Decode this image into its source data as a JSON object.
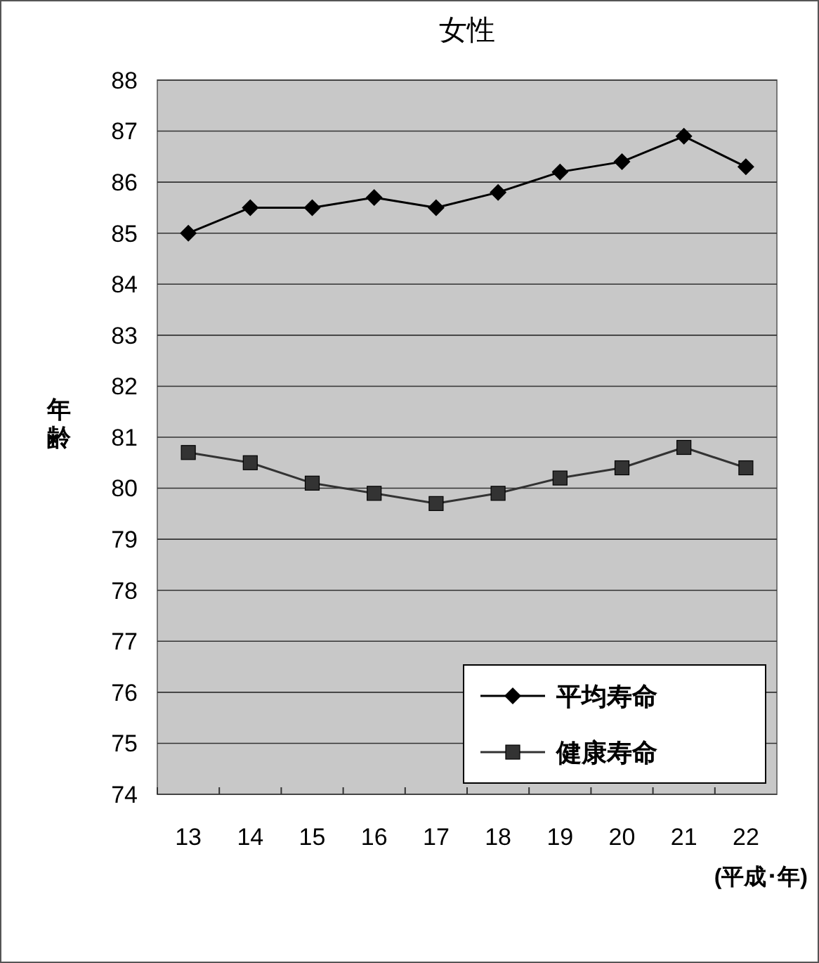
{
  "chart_data": {
    "type": "line",
    "title": "女性",
    "ylabel": "年齢",
    "xlabel": "(平成･年)",
    "categories": [
      "13",
      "14",
      "15",
      "16",
      "17",
      "18",
      "19",
      "20",
      "21",
      "22"
    ],
    "series": [
      {
        "name": "平均寿命",
        "color": "#000000",
        "marker": "diamond",
        "values": [
          85.0,
          85.5,
          85.5,
          85.7,
          85.5,
          85.8,
          86.2,
          86.4,
          86.9,
          86.3
        ]
      },
      {
        "name": "健康寿命",
        "color": "#333333",
        "marker": "square",
        "values": [
          80.7,
          80.5,
          80.1,
          79.9,
          79.7,
          79.9,
          80.2,
          80.4,
          80.8,
          80.4
        ]
      }
    ],
    "ylim": [
      74,
      88
    ],
    "yticks": [
      74,
      75,
      76,
      77,
      78,
      79,
      80,
      81,
      82,
      83,
      84,
      85,
      86,
      87,
      88
    ],
    "grid": "y",
    "legend": "bottom right"
  }
}
